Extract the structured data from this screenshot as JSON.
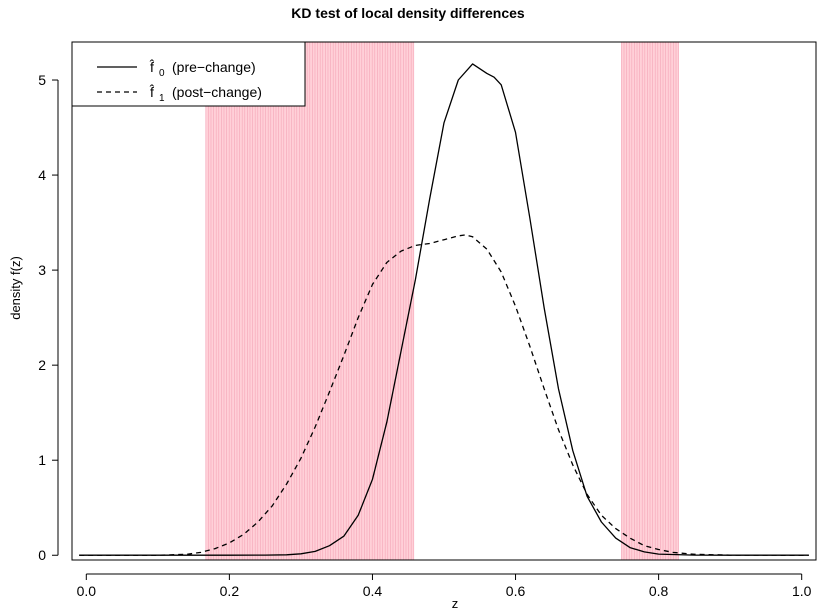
{
  "chart_data": {
    "type": "line",
    "title": "KD test of local density differences",
    "xlabel": "z",
    "ylabel": "density  f(z)",
    "xlim": [
      -0.02,
      1.02
    ],
    "ylim": [
      -0.05,
      5.4
    ],
    "xticks": [
      "0.0",
      "0.2",
      "0.4",
      "0.6",
      "0.8",
      "1.0"
    ],
    "yticks": [
      "0",
      "1",
      "2",
      "3",
      "4",
      "5"
    ],
    "grid": false,
    "legend_position": "top-left",
    "legend": {
      "entries": [
        {
          "symbol": "f̂",
          "sub": "0",
          "text": "(pre−change)",
          "linestyle": "solid"
        },
        {
          "symbol": "f̂",
          "sub": "1",
          "text": "(post−change)",
          "linestyle": "dashed"
        }
      ]
    },
    "shaded_regions": [
      {
        "x_start": 0.167,
        "x_end": 0.458,
        "color": "#ffc0cb"
      },
      {
        "x_start": 0.748,
        "x_end": 0.828,
        "color": "#ffc0cb"
      }
    ],
    "series": [
      {
        "linestyle": "solid",
        "color": "#000000",
        "x": [
          -0.01,
          0.1,
          0.2,
          0.25,
          0.28,
          0.3,
          0.32,
          0.34,
          0.36,
          0.38,
          0.4,
          0.42,
          0.44,
          0.46,
          0.48,
          0.5,
          0.52,
          0.54,
          0.56,
          0.57,
          0.58,
          0.6,
          0.62,
          0.64,
          0.66,
          0.68,
          0.7,
          0.72,
          0.74,
          0.76,
          0.78,
          0.8,
          0.85,
          0.9,
          1.01
        ],
        "y": [
          0,
          0,
          0,
          0.002,
          0.005,
          0.015,
          0.04,
          0.1,
          0.2,
          0.42,
          0.8,
          1.4,
          2.15,
          2.9,
          3.75,
          4.55,
          5.0,
          5.17,
          5.07,
          5.03,
          4.95,
          4.45,
          3.55,
          2.6,
          1.75,
          1.1,
          0.62,
          0.35,
          0.18,
          0.08,
          0.035,
          0.012,
          0.002,
          0,
          0
        ]
      },
      {
        "linestyle": "dashed",
        "color": "#000000",
        "x": [
          -0.01,
          0.1,
          0.14,
          0.16,
          0.18,
          0.2,
          0.22,
          0.24,
          0.26,
          0.28,
          0.3,
          0.32,
          0.34,
          0.36,
          0.38,
          0.4,
          0.42,
          0.44,
          0.46,
          0.47,
          0.48,
          0.5,
          0.52,
          0.53,
          0.54,
          0.56,
          0.58,
          0.6,
          0.62,
          0.64,
          0.66,
          0.68,
          0.7,
          0.72,
          0.74,
          0.76,
          0.78,
          0.8,
          0.82,
          0.85,
          0.9,
          1.01
        ],
        "y": [
          0,
          0,
          0.01,
          0.03,
          0.07,
          0.13,
          0.22,
          0.35,
          0.52,
          0.75,
          1.02,
          1.35,
          1.72,
          2.1,
          2.5,
          2.85,
          3.08,
          3.2,
          3.26,
          3.27,
          3.28,
          3.32,
          3.36,
          3.37,
          3.35,
          3.22,
          2.98,
          2.62,
          2.2,
          1.75,
          1.32,
          0.95,
          0.64,
          0.42,
          0.28,
          0.18,
          0.1,
          0.06,
          0.03,
          0.01,
          0.002,
          0
        ]
      }
    ]
  }
}
